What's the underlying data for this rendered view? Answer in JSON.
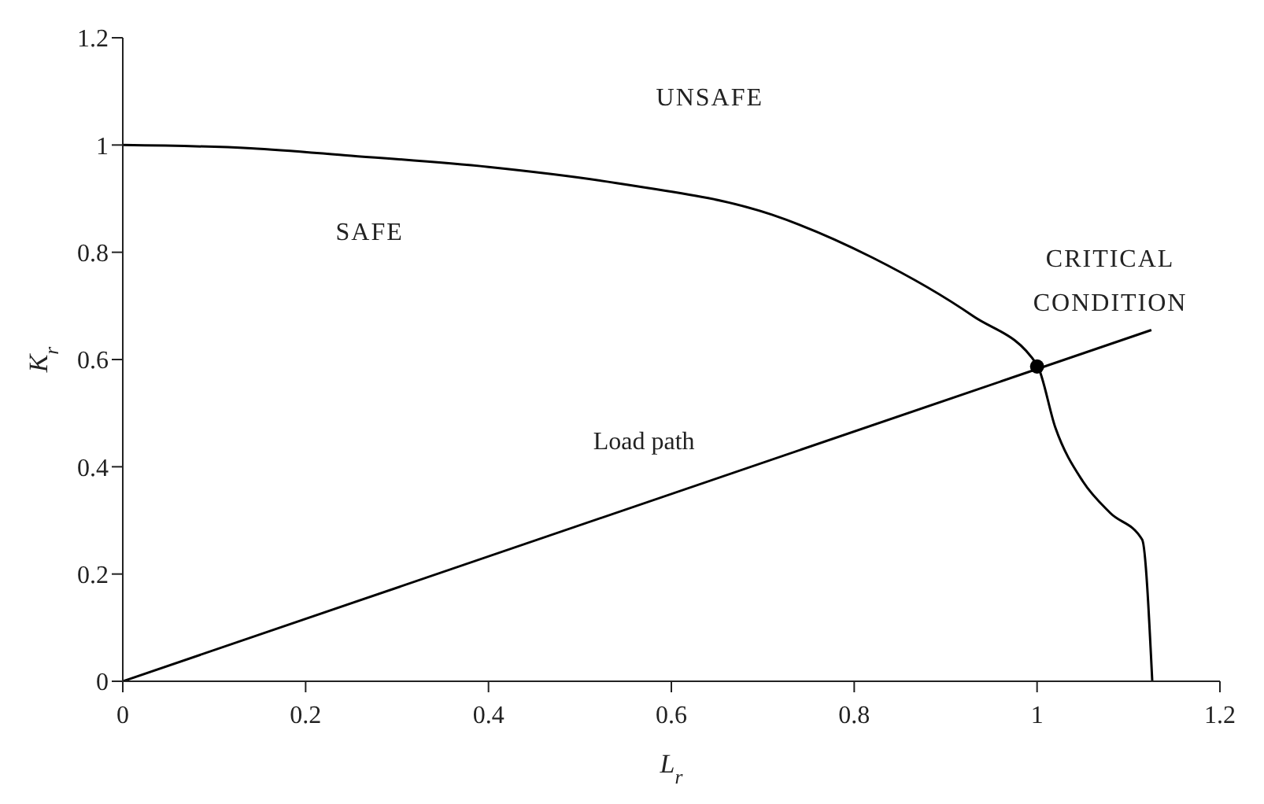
{
  "chart_data": {
    "type": "line",
    "xlabel": "L$_{r}$",
    "ylabel": "K$_{r}$",
    "xlim": [
      0,
      1.2
    ],
    "ylim": [
      0,
      1.2
    ],
    "xticks": [
      0,
      0.2,
      0.4,
      0.6,
      0.8,
      1,
      1.2
    ],
    "yticks": [
      0,
      0.2,
      0.4,
      0.6,
      0.8,
      1,
      1.2
    ],
    "series": [
      {
        "color": "#000000",
        "marker": "none",
        "x": [
          0,
          0.14,
          0.25,
          0.4,
          0.54,
          0.71,
          0.82,
          0.93,
          1.0,
          1.02,
          1.05,
          1.08,
          1.115,
          1.126
        ],
        "values": [
          1,
          0.994,
          0.98,
          0.959,
          0.929,
          0.87,
          0.79,
          0.681,
          0.59,
          0.473,
          0.373,
          0.314,
          0.264,
          0
        ]
      },
      {
        "color": "#000000",
        "marker": "none",
        "x": [
          0,
          1.125
        ],
        "values": [
          0,
          0.655
        ]
      },
      {
        "type": "scatter",
        "color": "#000000",
        "marker": "circle",
        "x": [
          1.0
        ],
        "values": [
          0.587
        ]
      }
    ],
    "annotations": [
      "UNSAFE",
      "SAFE",
      "CRITICAL CONDITION",
      "Load path"
    ]
  }
}
